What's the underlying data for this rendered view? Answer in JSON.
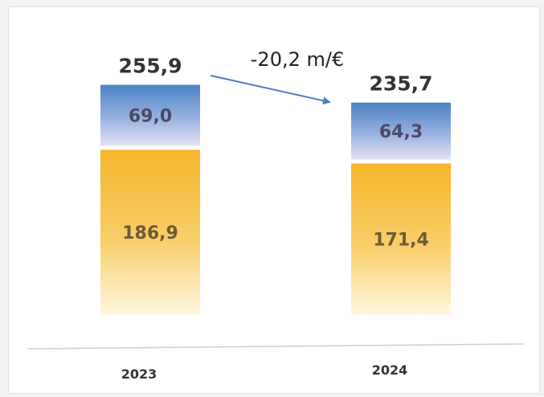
{
  "chart_data": {
    "type": "bar",
    "stacked": true,
    "categories": [
      "2023",
      "2024"
    ],
    "series": [
      {
        "values": [
          186.9,
          171.4
        ],
        "color": "#f5b82e"
      },
      {
        "values": [
          69.0,
          64.3
        ],
        "color": "#4f86c6"
      }
    ],
    "value_labels": [
      [
        "186,9",
        "171,4"
      ],
      [
        "69,0",
        "64,3"
      ]
    ],
    "totals": [
      255.9,
      235.7
    ],
    "total_labels": [
      "255,9",
      "235,7"
    ],
    "change_annotation": "-20,2 m/€",
    "grid": false,
    "legend": "none",
    "ylim": [
      0,
      300
    ]
  }
}
